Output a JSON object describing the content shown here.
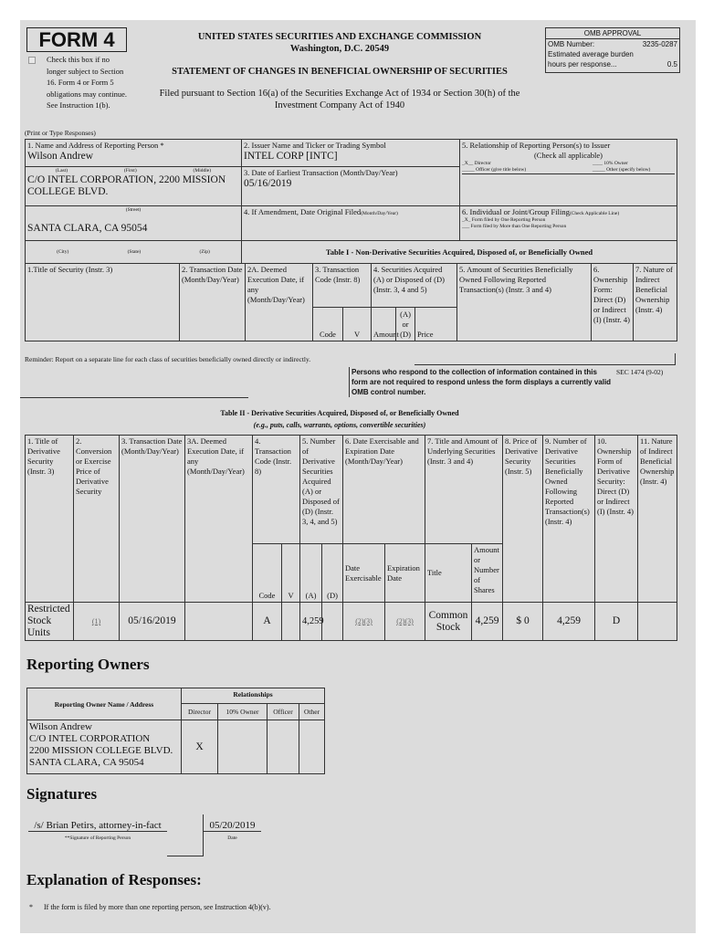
{
  "header": {
    "form_title": "FORM 4",
    "checkbox_text": "Check this box if no longer subject to Section 16. Form 4 or Form 5 obligations may continue. See Instruction 1(b).",
    "agency": "UNITED STATES SECURITIES AND EXCHANGE COMMISSION",
    "location": "Washington, D.C. 20549",
    "statement": "STATEMENT OF CHANGES IN BENEFICIAL OWNERSHIP OF SECURITIES",
    "filed_line1": "Filed pursuant to Section 16(a) of the Securities Exchange Act of 1934 or Section 30(h) of the",
    "filed_line2": "Investment Company Act of 1940",
    "omb": {
      "title": "OMB APPROVAL",
      "number_label": "OMB Number:",
      "number": "3235-0287",
      "burden_label": "Estimated average burden",
      "hours_label": "hours per response...",
      "hours": "0.5"
    },
    "print_note": "(Print or Type Responses)"
  },
  "part1": {
    "f1_label": "1. Name and Address of Reporting Person *",
    "f1_value": "Wilson Andrew",
    "last": "(Last)",
    "first": "(First)",
    "middle": "(Middle)",
    "address": "C/O INTEL CORPORATION, 2200 MISSION COLLEGE BLVD.",
    "street": "(Street)",
    "city_value": "SANTA CLARA, CA 95054",
    "city": "(City)",
    "state": "(State)",
    "zip": "(Zip)",
    "f2_label": "2. Issuer Name and Ticker or Trading Symbol",
    "f2_value": "INTEL CORP [INTC]",
    "f3_label": "3. Date of Earliest Transaction (Month/Day/Year)",
    "f3_value": "05/16/2019",
    "f4_label": "4. If Amendment, Date Original Filed",
    "f4_sub": "(Month/Day/Year)",
    "f5_label": "5. Relationship of Reporting Person(s) to Issuer",
    "f5_sub": "(Check all applicable)",
    "f5_director": "_X__ Director",
    "f5_owner": "____ 10% Owner",
    "f5_officer": "_____ Officer (give title below)",
    "f5_other": "_____ Other (specify below)",
    "f6_label": "6. Individual or Joint/Group Filing",
    "f6_sub": "(Check Applicable Line)",
    "f6_one": "_X_ Form filed by One Reporting Person",
    "f6_more": "___ Form filed by More than One Reporting Person"
  },
  "table1": {
    "title": "Table I - Non-Derivative Securities Acquired, Disposed of, or Beneficially Owned",
    "headers": [
      "1.Title of Security (Instr. 3)",
      "2. Transaction Date (Month/Day/Year)",
      "2A. Deemed Execution Date, if any (Month/Day/Year)",
      "3. Transaction Code (Instr. 8)",
      "4. Securities Acquired (A) or Disposed of (D) (Instr. 3, 4 and 5)",
      "5. Amount of Securities Beneficially Owned Following Reported Transaction(s) (Instr. 3 and 4)",
      "6. Ownership Form: Direct (D) or Indirect (I) (Instr. 4)",
      "7. Nature of Indirect Beneficial Ownership (Instr. 4)"
    ],
    "sub": [
      "Code",
      "V",
      "Amount",
      "(A) or (D)",
      "Price"
    ]
  },
  "reminder": "Reminder: Report on a separate line for each class of securities beneficially owned directly or indirectly.",
  "persons_notice": "Persons who respond to the collection of information contained in this form are not required to respond unless the form displays a currently valid OMB control number.",
  "sec_code": "SEC 1474 (9-02)",
  "table2": {
    "title": "Table II - Derivative Securities Acquired, Disposed of, or Beneficially Owned",
    "subtitle": "(e.g., puts, calls, warrants, options, convertible securities)",
    "headers": [
      "1. Title of Derivative Security (Instr. 3)",
      "2. Conversion or Exercise Price of Derivative Security",
      "3. Transaction Date (Month/Day/Year)",
      "3A. Deemed Execution Date, if any (Month/Day/Year)",
      "4. Transaction Code (Instr. 8)",
      "5. Number of Derivative Securities Acquired (A) or Disposed of (D) (Instr. 3, 4, and 5)",
      "6. Date Exercisable and Expiration Date (Month/Day/Year)",
      "7. Title and Amount of Underlying Securities (Instr. 3 and 4)",
      "8. Price of Derivative Security (Instr. 5)",
      "9. Number of Derivative Securities Beneficially Owned Following Reported Transaction(s) (Instr. 4)",
      "10. Ownership Form of Derivative Security: Direct (D) or Indirect (I) (Instr. 4)",
      "11. Nature of Indirect Beneficial Ownership (Instr. 4)"
    ],
    "sub": [
      "Code",
      "V",
      "(A)",
      "(D)",
      "Date Exercisable",
      "Expiration Date",
      "Title",
      "Amount or Number of Shares"
    ],
    "row": {
      "title": "Restricted Stock Units",
      "price_ref": "(1)",
      "date": "05/16/2019",
      "deemed": "",
      "code": "A",
      "v": "",
      "a": "4,259",
      "d": "",
      "exercisable": "(2)(3)",
      "expiration": "(2)(3)",
      "u_title": "Common Stock",
      "u_amount": "4,259",
      "price": "$ 0",
      "owned": "4,259",
      "form": "D",
      "nature": ""
    }
  },
  "owners": {
    "heading": "Reporting Owners",
    "col_name": "Reporting Owner Name / Address",
    "col_rel": "Relationships",
    "rel_cols": [
      "Director",
      "10% Owner",
      "Officer",
      "Other"
    ],
    "rows": [
      {
        "name": "Wilson Andrew",
        "addr1": "C/O INTEL CORPORATION",
        "addr2": "2200 MISSION COLLEGE BLVD.",
        "addr3": "SANTA CLARA, CA 95054",
        "director": "X",
        "owner": "",
        "officer": "",
        "other": ""
      }
    ]
  },
  "signatures": {
    "heading": "Signatures",
    "signature": "/s/ Brian Petirs, attorney-in-fact",
    "sig_caption": "**Signature of Reporting Person",
    "date": "05/20/2019",
    "date_caption": "Date"
  },
  "explanation": {
    "heading": "Explanation of Responses:",
    "notes": [
      {
        "mark": "*",
        "text": "If the form is filed by more than one reporting person, see Instruction 4(b)(v)."
      }
    ]
  }
}
